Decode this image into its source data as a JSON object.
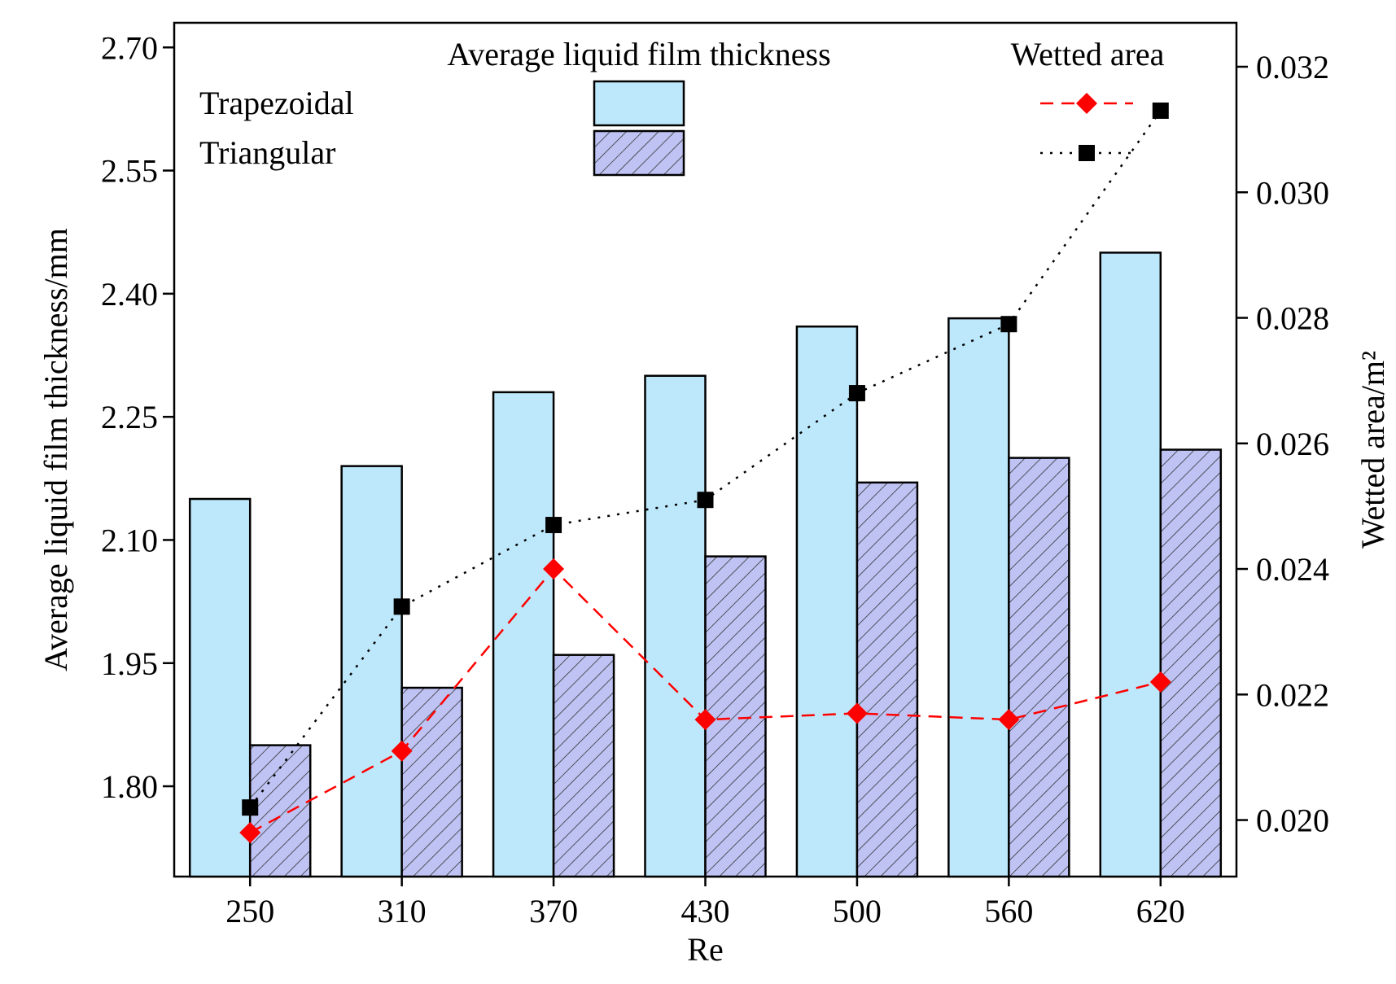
{
  "chart_data": {
    "type": "bar",
    "title": "",
    "xlabel": "Re",
    "ylabel": "Average liquid film thickness/mm",
    "y2label": "Wetted area/m²",
    "categories": [
      "250",
      "310",
      "370",
      "430",
      "500",
      "560",
      "620"
    ],
    "ylim": [
      1.69,
      2.73
    ],
    "y2lim": [
      0.0191,
      0.0327
    ],
    "yticks": [
      "1.80",
      "1.95",
      "2.10",
      "2.25",
      "2.40",
      "2.55",
      "2.70"
    ],
    "y2ticks": [
      "0.020",
      "0.022",
      "0.024",
      "0.026",
      "0.028",
      "0.030",
      "0.032"
    ],
    "bar_series": [
      {
        "name": "Trapezoidal",
        "values": [
          2.15,
          2.19,
          2.28,
          2.3,
          2.36,
          2.37,
          2.45
        ],
        "color": "#bde8fb"
      },
      {
        "name": "Triangular",
        "values": [
          1.85,
          1.92,
          1.96,
          2.08,
          2.17,
          2.2,
          2.21
        ],
        "color": "#bfc3f3",
        "hatch": "diagonal"
      }
    ],
    "line_series": [
      {
        "name": "Trapezoidal",
        "axis": "right",
        "values": [
          0.0198,
          0.0211,
          0.024,
          0.0216,
          0.0217,
          0.0216,
          0.0222
        ],
        "color": "#ff0000",
        "marker": "diamond",
        "style": "dashed"
      },
      {
        "name": "Triangular",
        "axis": "right",
        "values": [
          0.0202,
          0.0234,
          0.0247,
          0.0251,
          0.0268,
          0.0279,
          0.0313
        ],
        "color": "#000000",
        "marker": "square",
        "style": "dotted"
      }
    ],
    "legend": {
      "header_bars": "Average liquid film thickness",
      "header_lines": "Wetted area",
      "labels": [
        "Trapezoidal",
        "Triangular"
      ],
      "position": "top"
    }
  }
}
